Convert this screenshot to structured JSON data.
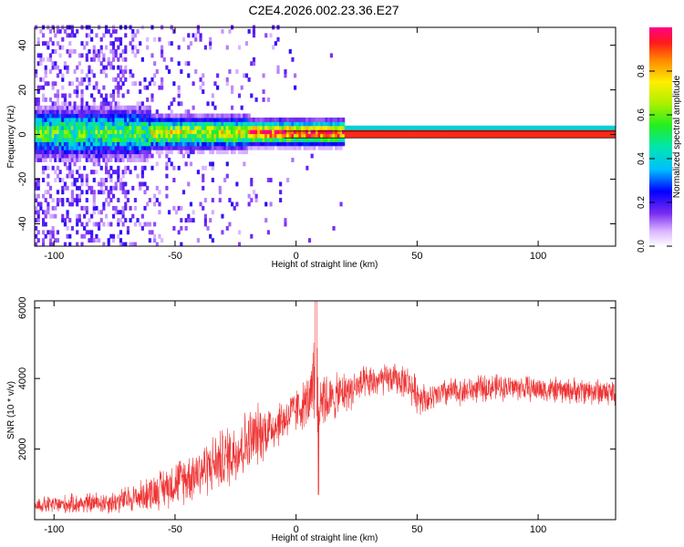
{
  "title": "C2E4.2026.002.23.36.E27",
  "chart_data": [
    {
      "type": "heatmap",
      "xlabel": "Height of straight line (km)",
      "ylabel": "Frequency (Hz)",
      "xlim": [
        -108,
        132
      ],
      "ylim": [
        -50,
        48
      ],
      "xticks": [
        -100,
        -50,
        0,
        50,
        100
      ],
      "yticks": [
        -40,
        -20,
        0,
        20,
        40
      ],
      "colorbar": {
        "label": "Normalized spectral amplitude",
        "range": [
          0,
          1
        ],
        "ticks": [
          0.0,
          0.2,
          0.4,
          0.6,
          0.8
        ],
        "tick_labels": [
          "0.0",
          "0.2",
          "0.4",
          "0.6",
          "0.8"
        ]
      },
      "ridge_frequency": 0,
      "grid": false
    },
    {
      "type": "line",
      "xlabel": "Height of straight line (km)",
      "ylabel": "SNR (10 * v/v)",
      "xlim": [
        -108,
        132
      ],
      "ylim": [
        0,
        6200
      ],
      "xticks": [
        -100,
        -50,
        0,
        50,
        100
      ],
      "yticks": [
        2000,
        4000,
        6000
      ],
      "line_color": "#ee3333",
      "grid": false,
      "envelope": {
        "x": [
          -108,
          -90,
          -75,
          -65,
          -55,
          -45,
          -35,
          -28,
          -22,
          -15,
          -8,
          -3,
          2,
          6,
          8,
          9,
          10,
          12,
          14,
          18,
          25,
          32,
          40,
          46,
          50,
          55,
          62,
          70,
          80,
          90,
          100,
          110,
          120,
          132
        ],
        "center": [
          400,
          450,
          500,
          650,
          900,
          1200,
          1550,
          1800,
          2100,
          2450,
          2700,
          2950,
          3200,
          3400,
          3600,
          2800,
          3700,
          3450,
          3350,
          3550,
          3750,
          3900,
          4000,
          3900,
          3550,
          3400,
          3600,
          3650,
          3750,
          3750,
          3700,
          3650,
          3650,
          3600
        ],
        "spread": [
          250,
          300,
          350,
          450,
          600,
          750,
          850,
          950,
          1000,
          900,
          700,
          650,
          700,
          800,
          2400,
          1800,
          1200,
          900,
          700,
          650,
          550,
          500,
          450,
          500,
          550,
          400,
          450,
          400,
          400,
          380,
          380,
          380,
          400,
          420
        ]
      }
    }
  ]
}
